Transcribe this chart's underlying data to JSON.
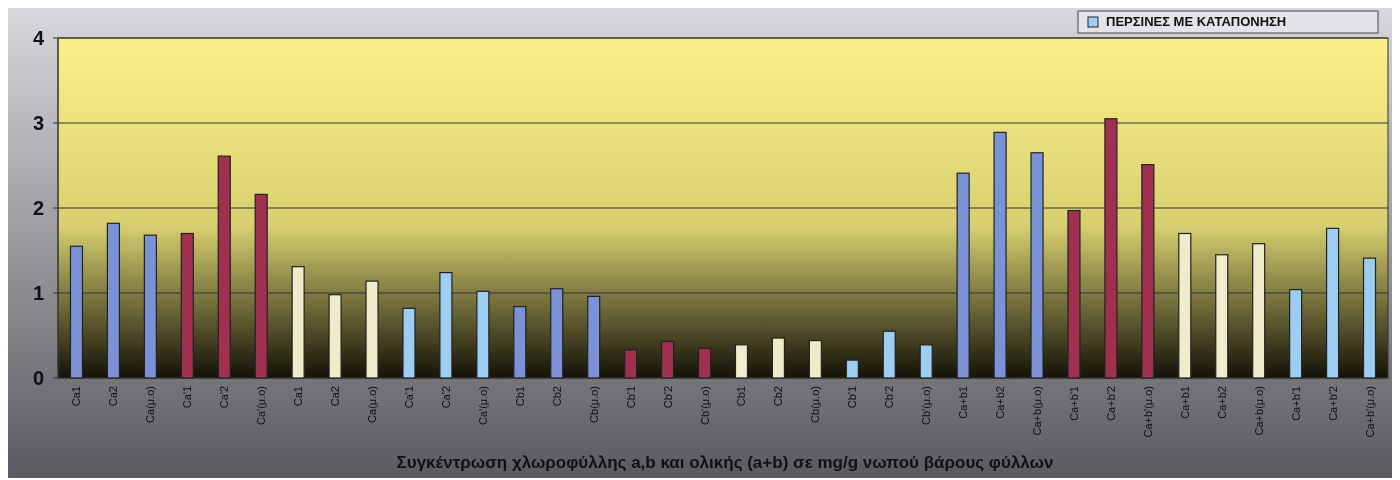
{
  "chart_data": {
    "type": "bar",
    "xlabel": "Συγκέντρωση χλωροφύλλης a,b και ολικής (a+b) σε mg/g νωπού βάρους φύλλων",
    "categories": [
      "Ca1",
      "Ca2",
      "Ca(μ.ο)",
      "Ca'1",
      "Ca'2",
      "Ca'(μ.ο)",
      "Ca1",
      "Ca2",
      "Ca(μ.ο)",
      "Ca'1",
      "Ca'2",
      "Ca'(μ.ο)",
      "Cb1",
      "Cb2",
      "Cb(μ.ο)",
      "Cb'1",
      "Cb'2",
      "Cb'(μ.ο)",
      "Cb1",
      "Cb2",
      "Cb(μ.ο)",
      "Cb'1",
      "Cb'2",
      "Cb'(μ.ο)",
      "Ca+b1",
      "Ca+b2",
      "Ca+b(μ.ο)",
      "Ca+b'1",
      "Ca+b'2",
      "Ca+b'(μ.ο)",
      "Ca+b1",
      "Ca+b2",
      "Ca+b(μ.ο)",
      "Ca+b'1",
      "Ca+b'2",
      "Ca+b'(μ.ο)"
    ],
    "series": [
      {
        "color": "#7b93d6",
        "values": [
          1.55,
          1.82,
          1.68,
          null,
          null,
          null,
          null,
          null,
          null,
          null,
          null,
          null,
          0.84,
          1.05,
          0.96,
          null,
          null,
          null,
          null,
          null,
          null,
          null,
          null,
          null,
          2.41,
          2.89,
          2.65,
          null,
          null,
          null,
          null,
          null,
          null,
          null,
          null,
          null
        ]
      },
      {
        "color": "#a03050",
        "values": [
          null,
          null,
          null,
          1.7,
          2.61,
          2.16,
          null,
          null,
          null,
          null,
          null,
          null,
          null,
          null,
          null,
          0.33,
          0.43,
          0.35,
          null,
          null,
          null,
          null,
          null,
          null,
          null,
          null,
          null,
          1.97,
          3.05,
          2.51,
          null,
          null,
          null,
          null,
          null,
          null
        ]
      },
      {
        "color": "#efeccc",
        "values": [
          null,
          null,
          null,
          null,
          null,
          null,
          1.31,
          0.98,
          1.14,
          null,
          null,
          null,
          null,
          null,
          null,
          null,
          null,
          null,
          0.39,
          0.47,
          0.44,
          null,
          null,
          null,
          null,
          null,
          null,
          null,
          null,
          null,
          1.7,
          1.45,
          1.58,
          null,
          null,
          null
        ]
      },
      {
        "name": "ΠΕΡΣΙΝΕΣ ΜΕ ΚΑΤΑΠΟΝΗΣΗ",
        "color": "#9dcdf0",
        "values": [
          null,
          null,
          null,
          null,
          null,
          null,
          null,
          null,
          null,
          0.82,
          1.24,
          1.02,
          null,
          null,
          null,
          null,
          null,
          null,
          null,
          null,
          null,
          0.21,
          0.55,
          0.39,
          null,
          null,
          null,
          null,
          null,
          null,
          null,
          null,
          null,
          1.04,
          1.76,
          1.41
        ]
      }
    ],
    "ylim": [
      0,
      4
    ],
    "yticks": [
      0,
      1,
      2,
      3,
      4
    ],
    "grid": "y",
    "legend": "top right"
  }
}
